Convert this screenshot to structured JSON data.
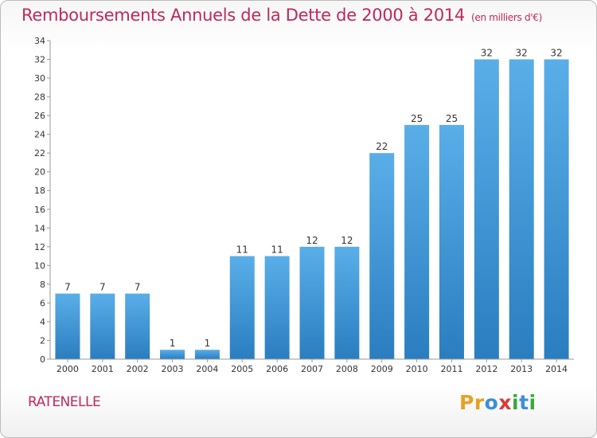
{
  "header": {
    "title": "Remboursements Annuels de la Dette de 2000 à 2014",
    "unit": "(en milliers d'€)"
  },
  "footer": {
    "commune": "RATENELLE",
    "brand_letters": [
      "P",
      "r",
      "o",
      "x",
      "i",
      "t",
      "i"
    ]
  },
  "colors": {
    "title": "#c0285a",
    "bar_top": "#5aaee8",
    "bar_bottom": "#2a7ec0",
    "brand": [
      "#e8a020",
      "#e8a020",
      "#3a8fd8",
      "#d83a3a",
      "#3aa83a",
      "#3a8fd8",
      "#3aa83a"
    ]
  },
  "chart_data": {
    "type": "bar",
    "title": "Remboursements Annuels de la Dette de 2000 à 2014",
    "xlabel": "",
    "ylabel": "",
    "ylim": [
      0,
      34
    ],
    "ytick_step": 2,
    "grid": false,
    "categories": [
      "2000",
      "2001",
      "2002",
      "2003",
      "2004",
      "2005",
      "2006",
      "2007",
      "2008",
      "2009",
      "2010",
      "2011",
      "2012",
      "2013",
      "2014"
    ],
    "values": [
      7,
      7,
      7,
      1,
      1,
      11,
      11,
      12,
      12,
      22,
      25,
      25,
      32,
      32,
      32
    ]
  }
}
